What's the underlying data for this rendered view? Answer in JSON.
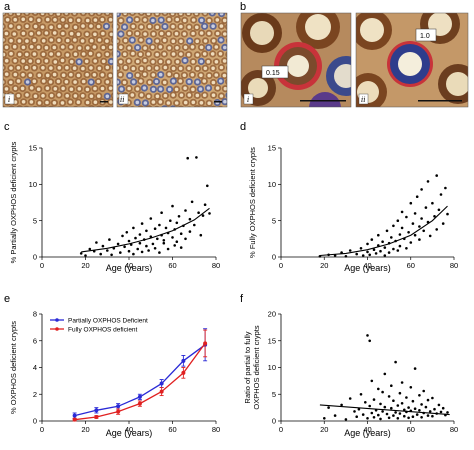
{
  "panel_labels": {
    "a": "a",
    "b": "b",
    "c": "c",
    "d": "d",
    "e": "e",
    "f": "f"
  },
  "micrographs": {
    "a_sub": [
      "i",
      "ii"
    ],
    "b_sub": [
      "i",
      "ii"
    ],
    "b_callouts": [
      "0.15",
      "1.0"
    ],
    "colors": {
      "tissue": "#cfa06a",
      "brown": "#8a4a22",
      "blue": "#3b4a8c",
      "red": "#c8333a"
    }
  },
  "chart_data": [
    {
      "id": "c",
      "type": "scatter",
      "xlabel": "Age (years)",
      "ylabel": "% Partially OXPHOS deficient crypts",
      "xlim": [
        0,
        80
      ],
      "ylim": [
        0,
        15
      ],
      "xticks": [
        0,
        20,
        40,
        60,
        80
      ],
      "yticks": [
        0,
        5,
        10,
        15
      ],
      "trend": {
        "x": [
          18,
          30,
          40,
          50,
          60,
          70,
          77
        ],
        "y": [
          0.7,
          1.2,
          1.8,
          2.6,
          3.6,
          5.1,
          6.7
        ]
      },
      "points": [
        [
          18,
          0.5
        ],
        [
          20,
          0.2
        ],
        [
          22,
          1.1
        ],
        [
          24,
          0.8
        ],
        [
          25,
          2.0
        ],
        [
          27,
          0.4
        ],
        [
          28,
          1.5
        ],
        [
          30,
          0.9
        ],
        [
          31,
          2.4
        ],
        [
          32,
          0.3
        ],
        [
          33,
          1.2
        ],
        [
          35,
          1.8
        ],
        [
          36,
          0.6
        ],
        [
          37,
          2.9
        ],
        [
          38,
          1.4
        ],
        [
          39,
          3.4
        ],
        [
          40,
          0.8
        ],
        [
          40,
          2.2
        ],
        [
          41,
          1.7
        ],
        [
          42,
          4.0
        ],
        [
          42,
          0.4
        ],
        [
          43,
          2.6
        ],
        [
          44,
          1.1
        ],
        [
          45,
          3.1
        ],
        [
          45,
          1.9
        ],
        [
          46,
          0.7
        ],
        [
          46,
          4.6
        ],
        [
          47,
          2.4
        ],
        [
          48,
          1.5
        ],
        [
          48,
          3.6
        ],
        [
          49,
          0.9
        ],
        [
          50,
          2.8
        ],
        [
          50,
          5.3
        ],
        [
          51,
          1.8
        ],
        [
          52,
          3.9
        ],
        [
          52,
          1.2
        ],
        [
          53,
          2.5
        ],
        [
          54,
          4.4
        ],
        [
          54,
          0.6
        ],
        [
          55,
          3.0
        ],
        [
          55,
          6.1
        ],
        [
          56,
          1.9
        ],
        [
          56,
          2.3
        ],
        [
          57,
          4.0
        ],
        [
          58,
          3.3
        ],
        [
          58,
          1.1
        ],
        [
          59,
          5.0
        ],
        [
          60,
          2.7
        ],
        [
          60,
          7.0
        ],
        [
          61,
          3.8
        ],
        [
          61,
          1.6
        ],
        [
          62,
          4.7
        ],
        [
          62,
          2.1
        ],
        [
          63,
          5.6
        ],
        [
          64,
          3.2
        ],
        [
          64,
          1.3
        ],
        [
          65,
          4.3
        ],
        [
          66,
          6.4
        ],
        [
          66,
          2.5
        ],
        [
          67,
          13.6
        ],
        [
          68,
          5.2
        ],
        [
          68,
          3.5
        ],
        [
          69,
          7.6
        ],
        [
          70,
          4.4
        ],
        [
          71,
          13.7
        ],
        [
          72,
          6.1
        ],
        [
          73,
          3.0
        ],
        [
          74,
          5.7
        ],
        [
          75,
          7.2
        ],
        [
          76,
          9.8
        ],
        [
          77,
          6.0
        ]
      ]
    },
    {
      "id": "d",
      "type": "scatter",
      "xlabel": "Age (years)",
      "ylabel": "% Fully OXPHOS deficient crypts",
      "xlim": [
        0,
        80
      ],
      "ylim": [
        0,
        15
      ],
      "xticks": [
        0,
        20,
        40,
        60,
        80
      ],
      "yticks": [
        0,
        5,
        10,
        15
      ],
      "trend": {
        "x": [
          18,
          30,
          40,
          50,
          60,
          70,
          77
        ],
        "y": [
          0.2,
          0.5,
          1.0,
          1.8,
          3.0,
          5.0,
          7.0
        ]
      },
      "points": [
        [
          18,
          0.1
        ],
        [
          22,
          0.3
        ],
        [
          25,
          0.2
        ],
        [
          28,
          0.6
        ],
        [
          30,
          0.1
        ],
        [
          32,
          0.9
        ],
        [
          35,
          0.4
        ],
        [
          37,
          1.2
        ],
        [
          38,
          0.2
        ],
        [
          40,
          0.7
        ],
        [
          40,
          1.8
        ],
        [
          41,
          0.3
        ],
        [
          42,
          2.4
        ],
        [
          43,
          1.0
        ],
        [
          44,
          0.5
        ],
        [
          45,
          1.6
        ],
        [
          45,
          3.0
        ],
        [
          46,
          0.8
        ],
        [
          47,
          2.1
        ],
        [
          48,
          1.3
        ],
        [
          48,
          0.2
        ],
        [
          49,
          3.6
        ],
        [
          50,
          1.9
        ],
        [
          50,
          0.6
        ],
        [
          51,
          2.7
        ],
        [
          52,
          4.3
        ],
        [
          52,
          1.1
        ],
        [
          53,
          2.2
        ],
        [
          54,
          0.9
        ],
        [
          54,
          5.0
        ],
        [
          55,
          3.1
        ],
        [
          55,
          1.5
        ],
        [
          56,
          4.0
        ],
        [
          56,
          6.2
        ],
        [
          57,
          2.5
        ],
        [
          58,
          5.5
        ],
        [
          58,
          1.2
        ],
        [
          59,
          3.4
        ],
        [
          60,
          7.4
        ],
        [
          60,
          2.0
        ],
        [
          61,
          4.6
        ],
        [
          62,
          3.0
        ],
        [
          62,
          6.0
        ],
        [
          63,
          8.3
        ],
        [
          64,
          4.2
        ],
        [
          64,
          2.4
        ],
        [
          65,
          9.3
        ],
        [
          65,
          5.3
        ],
        [
          66,
          3.6
        ],
        [
          67,
          6.8
        ],
        [
          68,
          4.8
        ],
        [
          68,
          10.4
        ],
        [
          69,
          2.9
        ],
        [
          70,
          7.4
        ],
        [
          71,
          5.6
        ],
        [
          72,
          11.2
        ],
        [
          72,
          3.8
        ],
        [
          73,
          6.5
        ],
        [
          74,
          8.6
        ],
        [
          75,
          4.6
        ],
        [
          76,
          9.5
        ],
        [
          77,
          5.9
        ]
      ]
    },
    {
      "id": "e",
      "type": "line",
      "xlabel": "Age (years)",
      "ylabel": "% OXPHOS deficient crypts",
      "xlim": [
        0,
        80
      ],
      "ylim": [
        0,
        8
      ],
      "xticks": [
        0,
        20,
        40,
        60,
        80
      ],
      "yticks": [
        0,
        2,
        4,
        6,
        8
      ],
      "legend_position": "top-left",
      "series": [
        {
          "name": "Partially OXPHOS Deficient",
          "color": "#2a2ad6",
          "x": [
            15,
            25,
            35,
            45,
            55,
            65,
            75
          ],
          "y": [
            0.4,
            0.8,
            1.1,
            1.8,
            2.8,
            4.5,
            5.7
          ],
          "err": [
            0.2,
            0.2,
            0.2,
            0.2,
            0.3,
            0.4,
            1.2
          ]
        },
        {
          "name": "Fully OXPHOS deficient",
          "color": "#e02020",
          "x": [
            15,
            25,
            35,
            45,
            55,
            65,
            75
          ],
          "y": [
            0.1,
            0.3,
            0.7,
            1.3,
            2.2,
            3.6,
            5.8
          ],
          "err": [
            0.1,
            0.1,
            0.2,
            0.2,
            0.3,
            0.4,
            1.0
          ]
        }
      ]
    },
    {
      "id": "f",
      "type": "scatter",
      "xlabel": "Age (years)",
      "ylabel": "Ratio of partial to fully OXPHOS deficient crypts",
      "ylabel_lines": [
        "Ratio of partial to fully",
        "OXPHOS deficient crypts"
      ],
      "xlim": [
        0,
        80
      ],
      "ylim": [
        0,
        20
      ],
      "xticks": [
        0,
        20,
        40,
        60,
        80
      ],
      "yticks": [
        0,
        5,
        10,
        15,
        20
      ],
      "trend": {
        "x": [
          18,
          78
        ],
        "y": [
          3.0,
          1.2
        ]
      },
      "points": [
        [
          20,
          0.5
        ],
        [
          22,
          2.5
        ],
        [
          25,
          1.0
        ],
        [
          28,
          3.0
        ],
        [
          30,
          0.3
        ],
        [
          32,
          4.2
        ],
        [
          34,
          1.8
        ],
        [
          35,
          0.8
        ],
        [
          36,
          2.2
        ],
        [
          37,
          5.0
        ],
        [
          38,
          1.2
        ],
        [
          39,
          3.5
        ],
        [
          40,
          16.0
        ],
        [
          40,
          0.5
        ],
        [
          41,
          2.8
        ],
        [
          41,
          15.0
        ],
        [
          42,
          1.5
        ],
        [
          42,
          7.5
        ],
        [
          43,
          4.0
        ],
        [
          43,
          0.7
        ],
        [
          44,
          2.0
        ],
        [
          45,
          6.0
        ],
        [
          45,
          1.1
        ],
        [
          46,
          3.2
        ],
        [
          46,
          0.4
        ],
        [
          47,
          5.4
        ],
        [
          47,
          1.8
        ],
        [
          48,
          2.6
        ],
        [
          48,
          8.8
        ],
        [
          49,
          1.3
        ],
        [
          50,
          4.6
        ],
        [
          50,
          0.6
        ],
        [
          51,
          2.4
        ],
        [
          51,
          6.6
        ],
        [
          52,
          1.0
        ],
        [
          52,
          3.8
        ],
        [
          53,
          11.0
        ],
        [
          53,
          1.6
        ],
        [
          54,
          2.9
        ],
        [
          54,
          0.5
        ],
        [
          55,
          5.2
        ],
        [
          55,
          1.4
        ],
        [
          56,
          3.3
        ],
        [
          56,
          7.2
        ],
        [
          57,
          0.9
        ],
        [
          57,
          2.1
        ],
        [
          58,
          4.4
        ],
        [
          58,
          1.7
        ],
        [
          59,
          2.5
        ],
        [
          59,
          0.6
        ],
        [
          60,
          6.3
        ],
        [
          60,
          1.9
        ],
        [
          61,
          3.7
        ],
        [
          61,
          0.8
        ],
        [
          62,
          2.3
        ],
        [
          62,
          9.8
        ],
        [
          63,
          1.2
        ],
        [
          64,
          4.8
        ],
        [
          64,
          2.0
        ],
        [
          65,
          0.7
        ],
        [
          65,
          3.1
        ],
        [
          66,
          1.5
        ],
        [
          66,
          5.6
        ],
        [
          67,
          2.6
        ],
        [
          68,
          1.0
        ],
        [
          68,
          3.9
        ],
        [
          69,
          1.8
        ],
        [
          70,
          4.3
        ],
        [
          70,
          0.9
        ],
        [
          71,
          2.2
        ],
        [
          72,
          1.4
        ],
        [
          73,
          3.0
        ],
        [
          74,
          1.7
        ],
        [
          75,
          2.4
        ],
        [
          76,
          1.1
        ],
        [
          77,
          1.6
        ]
      ]
    }
  ]
}
